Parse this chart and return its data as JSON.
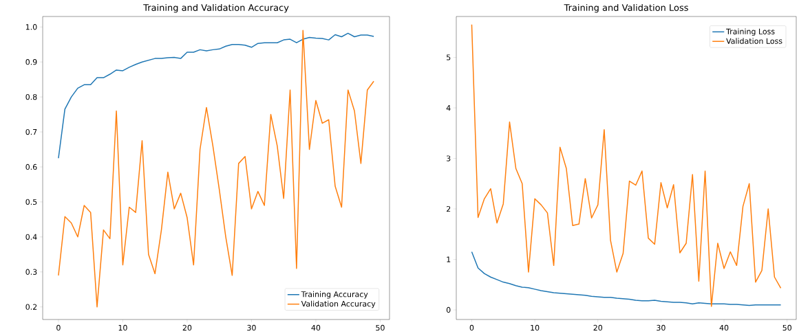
{
  "chart_data": [
    {
      "type": "line",
      "title": "Training and Validation Accuracy",
      "x": [
        0,
        1,
        2,
        3,
        4,
        5,
        6,
        7,
        8,
        9,
        10,
        11,
        12,
        13,
        14,
        15,
        16,
        17,
        18,
        19,
        20,
        21,
        22,
        23,
        24,
        25,
        26,
        27,
        28,
        29,
        30,
        31,
        32,
        33,
        34,
        35,
        36,
        37,
        38,
        39,
        40,
        41,
        42,
        43,
        44,
        45,
        46,
        47,
        48,
        49
      ],
      "series": [
        {
          "name": "Training Accuracy",
          "color": "#1f77b4",
          "values": [
            0.625,
            0.765,
            0.8,
            0.825,
            0.835,
            0.835,
            0.855,
            0.855,
            0.865,
            0.877,
            0.875,
            0.885,
            0.893,
            0.9,
            0.905,
            0.91,
            0.91,
            0.912,
            0.913,
            0.91,
            0.928,
            0.928,
            0.935,
            0.932,
            0.935,
            0.937,
            0.945,
            0.95,
            0.95,
            0.948,
            0.942,
            0.953,
            0.955,
            0.955,
            0.955,
            0.963,
            0.965,
            0.955,
            0.965,
            0.97,
            0.968,
            0.967,
            0.963,
            0.978,
            0.972,
            0.982,
            0.972,
            0.977,
            0.977,
            0.973
          ]
        },
        {
          "name": "Validation Accuracy",
          "color": "#ff7f0e",
          "values": [
            0.29,
            0.458,
            0.44,
            0.4,
            0.49,
            0.47,
            0.2,
            0.42,
            0.395,
            0.76,
            0.32,
            0.485,
            0.47,
            0.675,
            0.35,
            0.295,
            0.42,
            0.585,
            0.48,
            0.525,
            0.455,
            0.32,
            0.65,
            0.77,
            0.66,
            0.535,
            0.4,
            0.29,
            0.61,
            0.63,
            0.48,
            0.53,
            0.49,
            0.75,
            0.66,
            0.51,
            0.82,
            0.31,
            0.99,
            0.65,
            0.79,
            0.725,
            0.735,
            0.545,
            0.485,
            0.82,
            0.76,
            0.61,
            0.82,
            0.845
          ]
        }
      ],
      "xlim": [
        -2.45,
        51.45
      ],
      "xticks": [
        0,
        10,
        20,
        30,
        40,
        50
      ],
      "ylim": [
        0.164,
        1.03
      ],
      "yticks": [
        0.2,
        0.3,
        0.4,
        0.5,
        0.6,
        0.7,
        0.8,
        0.9,
        {
          "value": 1.0,
          "label": "1.0"
        }
      ],
      "legend": "bottom right",
      "line_style": "solid"
    },
    {
      "type": "line",
      "title": "Training and Validation Loss",
      "x": [
        0,
        1,
        2,
        3,
        4,
        5,
        6,
        7,
        8,
        9,
        10,
        11,
        12,
        13,
        14,
        15,
        16,
        17,
        18,
        19,
        20,
        21,
        22,
        23,
        24,
        25,
        26,
        27,
        28,
        29,
        30,
        31,
        32,
        33,
        34,
        35,
        36,
        37,
        38,
        39,
        40,
        41,
        42,
        43,
        44,
        45,
        46,
        47,
        48,
        49
      ],
      "series": [
        {
          "name": "Training Loss",
          "color": "#1f77b4",
          "values": [
            1.15,
            0.83,
            0.72,
            0.65,
            0.6,
            0.55,
            0.52,
            0.48,
            0.45,
            0.44,
            0.41,
            0.38,
            0.36,
            0.34,
            0.33,
            0.32,
            0.31,
            0.3,
            0.29,
            0.27,
            0.26,
            0.25,
            0.25,
            0.23,
            0.22,
            0.21,
            0.19,
            0.18,
            0.18,
            0.19,
            0.17,
            0.16,
            0.15,
            0.15,
            0.14,
            0.12,
            0.14,
            0.13,
            0.12,
            0.12,
            0.12,
            0.11,
            0.11,
            0.1,
            0.09,
            0.1,
            0.1,
            0.1,
            0.1,
            0.1
          ]
        },
        {
          "name": "Validation Loss",
          "color": "#ff7f0e",
          "values": [
            5.65,
            1.83,
            2.2,
            2.4,
            1.72,
            2.1,
            3.72,
            2.8,
            2.5,
            0.75,
            2.2,
            2.08,
            1.92,
            0.88,
            3.22,
            2.8,
            1.67,
            1.7,
            2.6,
            1.82,
            2.08,
            3.57,
            1.38,
            0.75,
            1.12,
            2.55,
            2.47,
            2.75,
            1.42,
            1.3,
            2.52,
            2.02,
            2.48,
            1.13,
            1.32,
            2.68,
            0.57,
            2.75,
            0.07,
            1.32,
            0.82,
            1.15,
            0.88,
            2.05,
            2.5,
            0.55,
            0.78,
            2.0,
            0.65,
            0.43
          ]
        }
      ],
      "xlim": [
        -2.45,
        51.45
      ],
      "xticks": [
        0,
        10,
        20,
        30,
        40,
        50
      ],
      "ylim": [
        -0.19,
        5.81
      ],
      "yticks": [
        0,
        1,
        2,
        3,
        4,
        5
      ],
      "legend": "top right",
      "line_style": "solid"
    }
  ]
}
